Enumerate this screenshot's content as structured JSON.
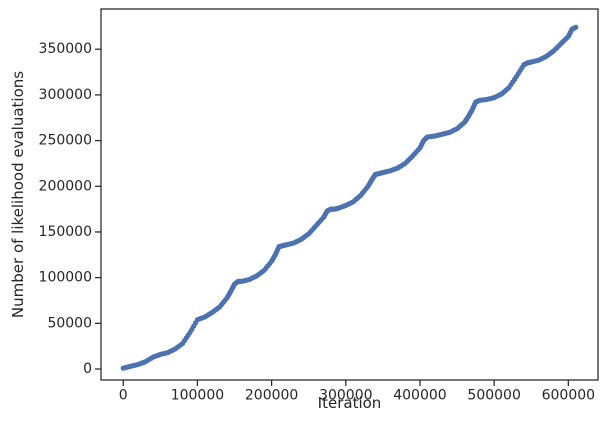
{
  "chart_data": {
    "type": "scatter",
    "title": "",
    "xlabel": "Iteration",
    "ylabel": "Number of likelihood evaluations",
    "xlim": [
      -30000,
      640000
    ],
    "ylim": [
      -12000,
      394000
    ],
    "xticks": [
      0,
      100000,
      200000,
      300000,
      400000,
      500000,
      600000
    ],
    "xtick_labels": [
      "0",
      "100000",
      "200000",
      "300000",
      "400000",
      "500000",
      "600000"
    ],
    "yticks": [
      0,
      50000,
      100000,
      150000,
      200000,
      250000,
      300000,
      350000
    ],
    "ytick_labels": [
      "0",
      "50000",
      "100000",
      "150000",
      "200000",
      "250000",
      "300000",
      "350000"
    ],
    "grid": false,
    "marker_color": "#4c72b0",
    "series": [
      {
        "x": [
          0,
          10000,
          20000,
          30000,
          40000,
          50000,
          60000,
          70000,
          80000,
          90000,
          100000,
          110000,
          120000,
          130000,
          140000,
          145000,
          150000,
          155000,
          160000,
          170000,
          180000,
          190000,
          200000,
          205000,
          210000,
          215000,
          220000,
          230000,
          240000,
          250000,
          260000,
          270000,
          275000,
          280000,
          285000,
          290000,
          300000,
          310000,
          320000,
          330000,
          335000,
          340000,
          345000,
          350000,
          360000,
          370000,
          380000,
          390000,
          400000,
          405000,
          410000,
          420000,
          430000,
          440000,
          450000,
          460000,
          465000,
          470000,
          475000,
          480000,
          490000,
          500000,
          510000,
          520000,
          530000,
          540000,
          545000,
          550000,
          560000,
          570000,
          580000,
          590000,
          600000,
          605000,
          610000
        ],
        "y": [
          1000,
          3000,
          5000,
          8000,
          13000,
          16000,
          18000,
          22000,
          28000,
          40000,
          54000,
          57000,
          62000,
          68000,
          78000,
          85000,
          93000,
          96000,
          96000,
          98000,
          102000,
          108000,
          118000,
          125000,
          134000,
          135000,
          136000,
          138000,
          142000,
          148000,
          157000,
          166000,
          173000,
          175000,
          175000,
          176000,
          179000,
          183000,
          190000,
          200000,
          207000,
          213000,
          214000,
          215000,
          217000,
          220000,
          225000,
          233000,
          242000,
          250000,
          254000,
          255000,
          257000,
          259000,
          263000,
          270000,
          276000,
          283000,
          292000,
          294000,
          295000,
          297000,
          301000,
          308000,
          320000,
          333000,
          335000,
          336000,
          338000,
          342000,
          348000,
          356000,
          364000,
          372000,
          374000
        ]
      }
    ]
  }
}
